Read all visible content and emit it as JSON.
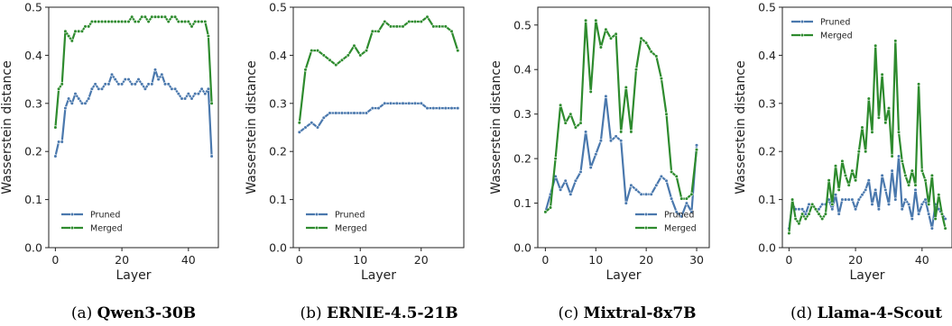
{
  "colors": {
    "pruned": "#4a78ad",
    "merged": "#2e8b2e"
  },
  "chart_data": [
    {
      "type": "line",
      "caption_prefix": "(a)",
      "caption_title": "Qwen3-30B",
      "xlabel": "Layer",
      "ylabel": "Wasserstein distance",
      "xlim": [
        -2,
        49
      ],
      "ylim": [
        0,
        0.5
      ],
      "xticks": [
        0,
        20,
        40
      ],
      "yticks": [
        0.0,
        0.1,
        0.2,
        0.3,
        0.4,
        0.5
      ],
      "legend": "lower-left",
      "series": [
        {
          "name": "Pruned",
          "color": "#4a78ad",
          "x_start": 0,
          "values": [
            0.19,
            0.22,
            0.22,
            0.29,
            0.31,
            0.3,
            0.32,
            0.31,
            0.3,
            0.3,
            0.31,
            0.33,
            0.34,
            0.33,
            0.33,
            0.34,
            0.34,
            0.36,
            0.35,
            0.34,
            0.34,
            0.35,
            0.35,
            0.34,
            0.34,
            0.35,
            0.34,
            0.33,
            0.34,
            0.34,
            0.37,
            0.35,
            0.36,
            0.34,
            0.34,
            0.33,
            0.33,
            0.32,
            0.31,
            0.31,
            0.32,
            0.31,
            0.32,
            0.32,
            0.33,
            0.32,
            0.33,
            0.19
          ]
        },
        {
          "name": "Merged",
          "color": "#2e8b2e",
          "x_start": 0,
          "values": [
            0.25,
            0.33,
            0.34,
            0.45,
            0.44,
            0.43,
            0.45,
            0.45,
            0.45,
            0.46,
            0.46,
            0.47,
            0.47,
            0.47,
            0.47,
            0.47,
            0.47,
            0.47,
            0.47,
            0.47,
            0.47,
            0.47,
            0.47,
            0.48,
            0.47,
            0.47,
            0.48,
            0.48,
            0.47,
            0.48,
            0.48,
            0.48,
            0.48,
            0.48,
            0.47,
            0.48,
            0.48,
            0.47,
            0.47,
            0.47,
            0.47,
            0.46,
            0.47,
            0.47,
            0.47,
            0.47,
            0.44,
            0.3
          ]
        }
      ]
    },
    {
      "type": "line",
      "caption_prefix": "(b)",
      "caption_title": "ERNIE-4.5-21B",
      "xlabel": "Layer",
      "ylabel": "Wasserstein distance",
      "xlim": [
        -1,
        27
      ],
      "ylim": [
        0,
        0.5
      ],
      "xticks": [
        0,
        10,
        20
      ],
      "yticks": [
        0.0,
        0.1,
        0.2,
        0.3,
        0.4,
        0.5
      ],
      "legend": "lower-left",
      "series": [
        {
          "name": "Pruned",
          "color": "#4a78ad",
          "x_start": 0,
          "values": [
            0.24,
            0.25,
            0.26,
            0.25,
            0.27,
            0.28,
            0.28,
            0.28,
            0.28,
            0.28,
            0.28,
            0.28,
            0.29,
            0.29,
            0.3,
            0.3,
            0.3,
            0.3,
            0.3,
            0.3,
            0.3,
            0.29,
            0.29,
            0.29,
            0.29,
            0.29,
            0.29
          ]
        },
        {
          "name": "Merged",
          "color": "#2e8b2e",
          "x_start": 0,
          "values": [
            0.26,
            0.37,
            0.41,
            0.41,
            0.4,
            0.39,
            0.38,
            0.39,
            0.4,
            0.42,
            0.4,
            0.41,
            0.45,
            0.45,
            0.47,
            0.46,
            0.46,
            0.46,
            0.47,
            0.47,
            0.47,
            0.48,
            0.46,
            0.46,
            0.46,
            0.45,
            0.41
          ]
        }
      ]
    },
    {
      "type": "line",
      "caption_prefix": "(c)",
      "caption_title": "Mixtral-8x7B",
      "xlabel": "Layer",
      "ylabel": "Wasserstein distance",
      "xlim": [
        -1.5,
        32.5
      ],
      "ylim": [
        0,
        0.54
      ],
      "xticks": [
        0,
        10,
        20,
        30
      ],
      "yticks": [
        0.0,
        0.1,
        0.2,
        0.3,
        0.4,
        0.5
      ],
      "legend": "lower-right",
      "series": [
        {
          "name": "Pruned",
          "color": "#4a78ad",
          "x_start": 0,
          "values": [
            0.08,
            0.12,
            0.16,
            0.13,
            0.15,
            0.12,
            0.15,
            0.17,
            0.26,
            0.18,
            0.21,
            0.24,
            0.34,
            0.24,
            0.25,
            0.24,
            0.1,
            0.14,
            0.13,
            0.12,
            0.12,
            0.12,
            0.14,
            0.16,
            0.15,
            0.11,
            0.08,
            0.07,
            0.1,
            0.08,
            0.23
          ]
        },
        {
          "name": "Merged",
          "color": "#2e8b2e",
          "x_start": 0,
          "values": [
            0.08,
            0.09,
            0.2,
            0.32,
            0.28,
            0.3,
            0.27,
            0.28,
            0.51,
            0.35,
            0.51,
            0.45,
            0.49,
            0.47,
            0.48,
            0.26,
            0.36,
            0.26,
            0.4,
            0.47,
            0.46,
            0.44,
            0.43,
            0.38,
            0.3,
            0.17,
            0.16,
            0.11,
            0.11,
            0.12,
            0.22
          ]
        }
      ]
    },
    {
      "type": "line",
      "caption_prefix": "(d)",
      "caption_title": "Llama-4-Scout",
      "xlabel": "Layer",
      "ylabel": "Wasserstein distance",
      "xlim": [
        -2,
        49
      ],
      "ylim": [
        0,
        0.5
      ],
      "xticks": [
        0,
        20,
        40
      ],
      "yticks": [
        0.0,
        0.1,
        0.2,
        0.3,
        0.4,
        0.5
      ],
      "legend": "upper-left",
      "series": [
        {
          "name": "Pruned",
          "color": "#4a78ad",
          "x_start": 0,
          "values": [
            0.04,
            0.09,
            0.08,
            0.08,
            0.08,
            0.07,
            0.09,
            0.09,
            0.08,
            0.08,
            0.09,
            0.09,
            0.1,
            0.08,
            0.11,
            0.07,
            0.1,
            0.1,
            0.1,
            0.1,
            0.08,
            0.1,
            0.11,
            0.12,
            0.14,
            0.09,
            0.12,
            0.08,
            0.15,
            0.12,
            0.09,
            0.16,
            0.1,
            0.19,
            0.08,
            0.1,
            0.09,
            0.06,
            0.12,
            0.07,
            0.09,
            0.1,
            0.07,
            0.04,
            0.09,
            0.08,
            0.07,
            0.06
          ]
        },
        {
          "name": "Merged",
          "color": "#2e8b2e",
          "x_start": 0,
          "values": [
            0.03,
            0.1,
            0.06,
            0.05,
            0.07,
            0.06,
            0.07,
            0.09,
            0.08,
            0.07,
            0.06,
            0.07,
            0.14,
            0.09,
            0.17,
            0.12,
            0.18,
            0.15,
            0.13,
            0.16,
            0.14,
            0.2,
            0.25,
            0.2,
            0.31,
            0.24,
            0.42,
            0.27,
            0.36,
            0.26,
            0.29,
            0.19,
            0.43,
            0.24,
            0.18,
            0.15,
            0.13,
            0.16,
            0.13,
            0.34,
            0.16,
            0.14,
            0.09,
            0.15,
            0.06,
            0.11,
            0.07,
            0.04
          ]
        }
      ]
    }
  ]
}
